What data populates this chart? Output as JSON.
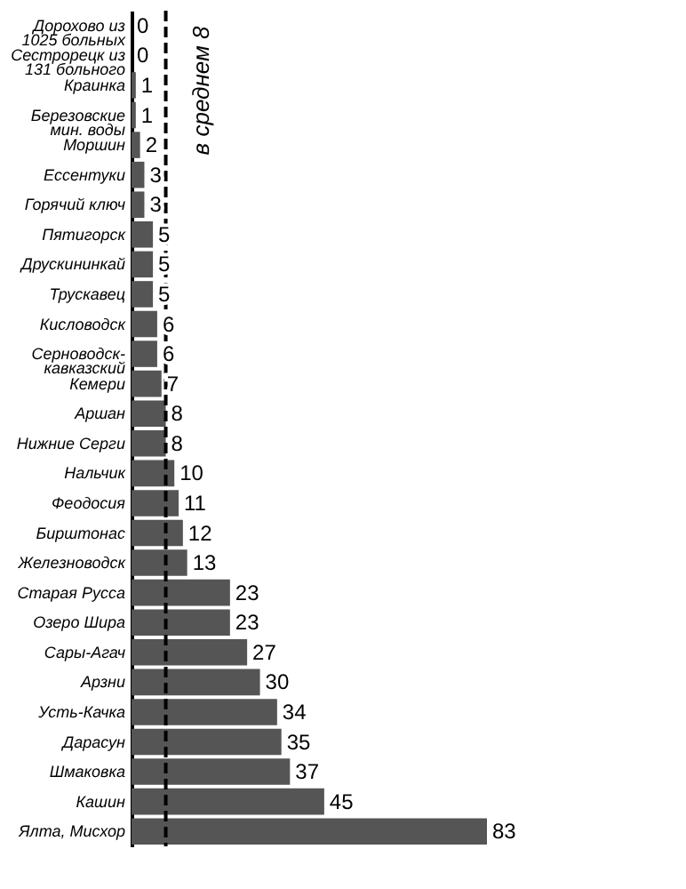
{
  "chart_data": {
    "type": "bar",
    "orientation": "horizontal",
    "categories": [
      "Дорохово из\n1025 больных",
      "Сестрорецк из\n131 больного",
      "Краинка",
      "Березовские\nмин. воды",
      "Моршин",
      "Ессентуки",
      "Горячий ключ",
      "Пятигорск",
      "Друскининкай",
      "Трускавец",
      "Кисловодск",
      "Серноводск-\nкавказский",
      "Кемери",
      "Аршан",
      "Нижние Серги",
      "Нальчик",
      "Феодосия",
      "Бирштонас",
      "Железноводск",
      "Старая Русса",
      "Озеро Шира",
      "Сары-Агач",
      "Арзни",
      "Усть-Качка",
      "Дарасун",
      "Шмаковка",
      "Кашин",
      "Ялта, Мисхор"
    ],
    "values": [
      0,
      0,
      1,
      1,
      2,
      3,
      3,
      5,
      5,
      5,
      6,
      6,
      7,
      8,
      8,
      10,
      11,
      12,
      13,
      23,
      23,
      27,
      30,
      34,
      35,
      37,
      45,
      83
    ],
    "color": "#555555",
    "data_labels": true,
    "ref_lines": [
      {
        "axis": "x",
        "value": 8,
        "label": "в среднем 8",
        "line_style": "dashed",
        "color": "#000000"
      }
    ]
  }
}
